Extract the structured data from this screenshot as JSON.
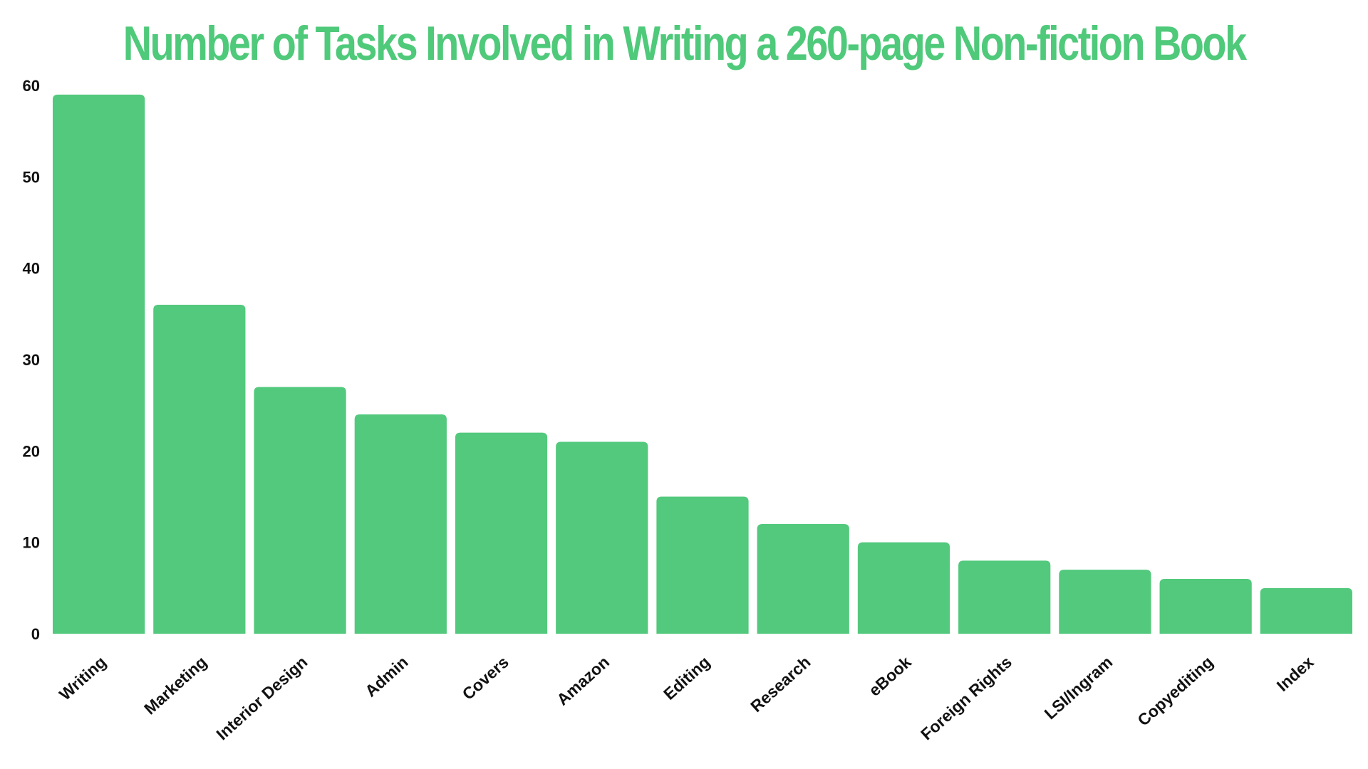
{
  "chart_data": {
    "type": "bar",
    "title": "Number of Tasks Involved in Writing a 260-page Non-fiction Book",
    "categories": [
      "Writing",
      "Marketing",
      "Interior Design",
      "Admin",
      "Covers",
      "Amazon",
      "Editing",
      "Research",
      "eBook",
      "Foreign Rights",
      "LSI/Ingram",
      "Copyediting",
      "Index"
    ],
    "values": [
      59,
      36,
      27,
      24,
      22,
      21,
      15,
      12,
      10,
      8,
      7,
      6,
      5
    ],
    "yticks": [
      "0",
      "10",
      "20",
      "30",
      "40",
      "50",
      "60"
    ],
    "ylim": [
      0,
      60
    ],
    "xlabel": "",
    "ylabel": "",
    "grid": false,
    "legend": "none",
    "colors": {
      "bar": "#52c97c",
      "title": "#4fc97a",
      "text": "#111111"
    }
  }
}
